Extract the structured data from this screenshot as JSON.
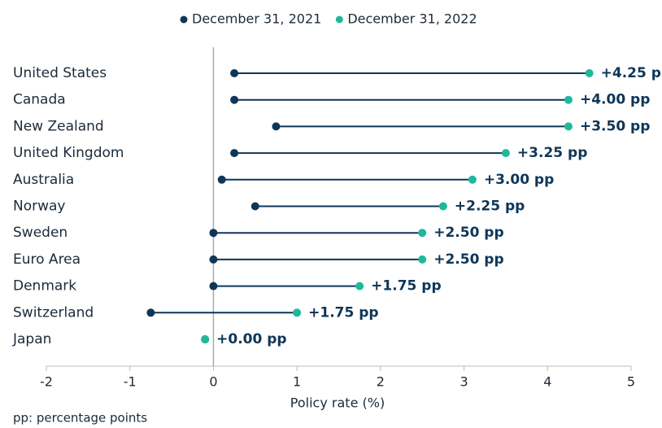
{
  "chart_data": {
    "type": "dumbbell",
    "categories": [
      "United States",
      "Canada",
      "New Zealand",
      "United Kingdom",
      "Australia",
      "Norway",
      "Sweden",
      "Euro Area",
      "Denmark",
      "Switzerland",
      "Japan"
    ],
    "series": [
      {
        "name": "December 31, 2021",
        "color": "#0f3658",
        "values": [
          0.25,
          0.25,
          0.75,
          0.25,
          0.1,
          0.5,
          0,
          0,
          0,
          -0.75,
          -0.1
        ]
      },
      {
        "name": "December 31, 2022",
        "color": "#1fb99a",
        "values": [
          4.5,
          4.25,
          4.25,
          3.5,
          3.1,
          2.75,
          2.5,
          2.5,
          1.75,
          1.0,
          -0.1
        ]
      }
    ],
    "change_labels": [
      "+4.25 pp",
      "+4.00 pp",
      "+3.50 pp",
      "+3.25 pp",
      "+3.00 pp",
      "+2.25 pp",
      "+2.50 pp",
      "+2.50 pp",
      "+1.75 pp",
      "+1.75 pp",
      "+0.00 pp"
    ],
    "xlabel": "Policy rate (%)",
    "xlim": [
      -2,
      5
    ],
    "xticks": [
      -2,
      -1,
      0,
      1,
      2,
      3,
      4,
      5
    ],
    "legend": "top",
    "footnote": "pp: percentage points"
  }
}
